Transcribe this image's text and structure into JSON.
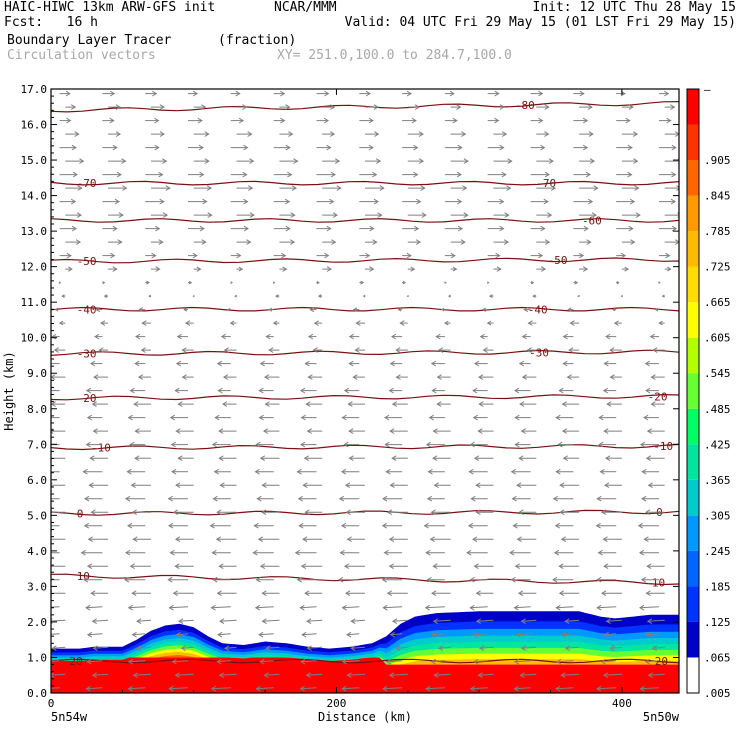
{
  "header": {
    "title": "HAIC-HIWC 13km ARW-GFS init",
    "org": "NCAR/MMM",
    "init": "Init: 12 UTC Thu 28 May 15",
    "fcst": "Fcst:   16 h",
    "valid": "Valid: 04 UTC Fri 29 May 15 (01 LST Fri 29 May 15)",
    "field": "Boundary Layer Tracer",
    "field_units": "(fraction)",
    "vectors": "Circulation vectors",
    "xy_range": "XY= 251.0,100.0 to 284.7,100.0"
  },
  "colors": {
    "contour": "#7a1010",
    "vector": "#7f7f7f",
    "frame": "#000000"
  },
  "chart_data": {
    "type": "heatmap",
    "xlabel": "Distance (km)",
    "ylabel": "Height (km)",
    "xlim": [
      0,
      440
    ],
    "ylim": [
      0,
      17
    ],
    "x_ticks": [
      "0",
      "200",
      "400"
    ],
    "y_ticks": [
      "0.0",
      "1.0",
      "2.0",
      "3.0",
      "4.0",
      "5.0",
      "6.0",
      "7.0",
      "8.0",
      "9.0",
      "10.0",
      "11.0",
      "12.0",
      "13.0",
      "14.0",
      "15.0",
      "16.0",
      "17.0"
    ],
    "x_endpoint_labels": [
      "5n54w",
      "5n50w"
    ],
    "colorbar": {
      "levels": [
        ".005",
        ".065",
        ".125",
        ".185",
        ".245",
        ".305",
        ".365",
        ".425",
        ".485",
        ".545",
        ".605",
        ".665",
        ".725",
        ".785",
        ".845",
        ".905",
        "–"
      ],
      "colors": [
        "#ffffff",
        "#0000c8",
        "#0033ff",
        "#0066ff",
        "#0099ff",
        "#00cccc",
        "#00e6a0",
        "#00ff66",
        "#66ff33",
        "#b3ff00",
        "#ffff00",
        "#ffdd00",
        "#ffbb00",
        "#ff9900",
        "#ff6600",
        "#ff3300",
        "#ff0000",
        "#ff0000"
      ]
    },
    "tracer_top_km": [
      [
        0,
        1.25
      ],
      [
        20,
        1.25
      ],
      [
        30,
        1.3
      ],
      [
        50,
        1.3
      ],
      [
        60,
        1.5
      ],
      [
        70,
        1.75
      ],
      [
        80,
        1.9
      ],
      [
        90,
        1.95
      ],
      [
        100,
        1.85
      ],
      [
        110,
        1.6
      ],
      [
        120,
        1.4
      ],
      [
        135,
        1.35
      ],
      [
        150,
        1.45
      ],
      [
        165,
        1.4
      ],
      [
        180,
        1.3
      ],
      [
        195,
        1.25
      ],
      [
        210,
        1.3
      ],
      [
        225,
        1.4
      ],
      [
        235,
        1.6
      ],
      [
        245,
        1.95
      ],
      [
        255,
        2.15
      ],
      [
        270,
        2.25
      ],
      [
        300,
        2.3
      ],
      [
        340,
        2.3
      ],
      [
        370,
        2.3
      ],
      [
        385,
        2.15
      ],
      [
        395,
        2.1
      ],
      [
        420,
        2.2
      ],
      [
        440,
        2.2
      ]
    ],
    "temperature_contours": [
      {
        "label": "20",
        "y_left": 0.9,
        "y_right": 0.9,
        "label_x": [
          13,
          423
        ]
      },
      {
        "label": "10",
        "y_left": 3.3,
        "y_right": 3.1,
        "label_x": [
          18,
          421
        ]
      },
      {
        "label": "0",
        "y_left": 5.05,
        "y_right": 5.1,
        "label_x": [
          18,
          424
        ]
      },
      {
        "label": "-10",
        "y_left": 6.9,
        "y_right": 6.95,
        "label_x": [
          28,
          422
        ]
      },
      {
        "label": "-20",
        "y_left": 8.3,
        "y_right": 8.35,
        "label_x": [
          18,
          418
        ]
      },
      {
        "label": "-30",
        "y_left": 9.55,
        "y_right": 9.6,
        "label_x": [
          18,
          335
        ]
      },
      {
        "label": "-40",
        "y_left": 10.8,
        "y_right": 10.8,
        "label_x": [
          18,
          334
        ]
      },
      {
        "label": "-50",
        "y_left": 12.15,
        "y_right": 12.2,
        "label_x": [
          18,
          348
        ]
      },
      {
        "label": "-60",
        "y_left": 13.3,
        "y_right": 13.3,
        "label_x": [
          372
        ]
      },
      {
        "label": "-70",
        "y_left": 14.35,
        "y_right": 14.35,
        "label_x": [
          18,
          340
        ]
      },
      {
        "label": "-80",
        "y_left": 16.4,
        "y_right": 16.6,
        "label_x": [
          325
        ]
      }
    ],
    "wind_u": [
      {
        "z": 0.3,
        "u": -3.2
      },
      {
        "z": 1.5,
        "u": -2.2
      },
      {
        "z": 2.5,
        "u": -3.3
      },
      {
        "z": 4,
        "u": -3.5
      },
      {
        "z": 6,
        "u": -3.2
      },
      {
        "z": 8,
        "u": -2.8
      },
      {
        "z": 9.5,
        "u": -2.0
      },
      {
        "z": 10.5,
        "u": -1.2
      },
      {
        "z": 11.3,
        "u": -0.2
      },
      {
        "z": 12,
        "u": 1.5
      },
      {
        "z": 13,
        "u": 2.8
      },
      {
        "z": 14,
        "u": 3.2
      },
      {
        "z": 15,
        "u": 3.0
      },
      {
        "z": 16,
        "u": 2.3
      },
      {
        "z": 17,
        "u": 1.8
      }
    ]
  }
}
